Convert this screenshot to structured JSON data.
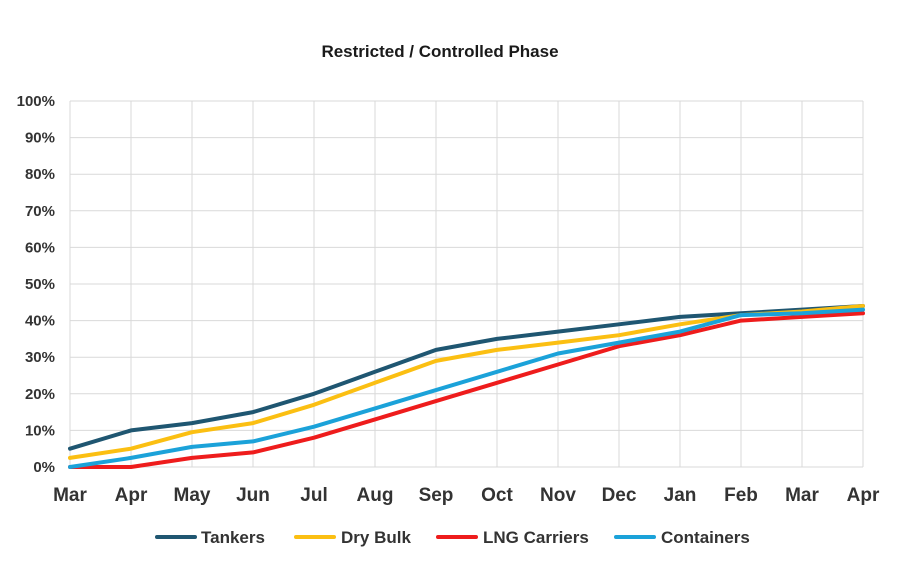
{
  "chart_data": {
    "type": "line",
    "title": "Restricted / Controlled Phase",
    "xlabel": "",
    "ylabel": "",
    "categories": [
      "Mar",
      "Apr",
      "May",
      "Jun",
      "Jul",
      "Aug",
      "Sep",
      "Oct",
      "Nov",
      "Dec",
      "Jan",
      "Feb",
      "Mar",
      "Apr"
    ],
    "ylim": [
      0,
      100
    ],
    "yticks": [
      "0%",
      "10%",
      "20%",
      "30%",
      "40%",
      "50%",
      "60%",
      "70%",
      "80%",
      "90%",
      "100%"
    ],
    "grid": true,
    "legend_position": "bottom",
    "series": [
      {
        "name": "Tankers",
        "color": "#1f5671",
        "values": [
          5,
          10,
          12,
          15,
          20,
          26,
          32,
          35,
          37,
          39,
          41,
          42,
          43,
          44
        ]
      },
      {
        "name": "Dry Bulk",
        "color": "#fbbf12",
        "values": [
          2.5,
          5,
          9.5,
          12,
          17,
          23,
          29,
          32,
          34,
          36,
          39,
          41.5,
          42.5,
          44
        ]
      },
      {
        "name": "LNG Carriers",
        "color": "#ee1c1c",
        "values": [
          0,
          0,
          2.5,
          4,
          8,
          13,
          18,
          23,
          28,
          33,
          36,
          40,
          41,
          42
        ]
      },
      {
        "name": "Containers",
        "color": "#1ba2d9",
        "values": [
          0,
          2.5,
          5.5,
          7,
          11,
          16,
          21,
          26,
          31,
          34,
          37,
          41.5,
          42,
          43
        ]
      }
    ]
  }
}
